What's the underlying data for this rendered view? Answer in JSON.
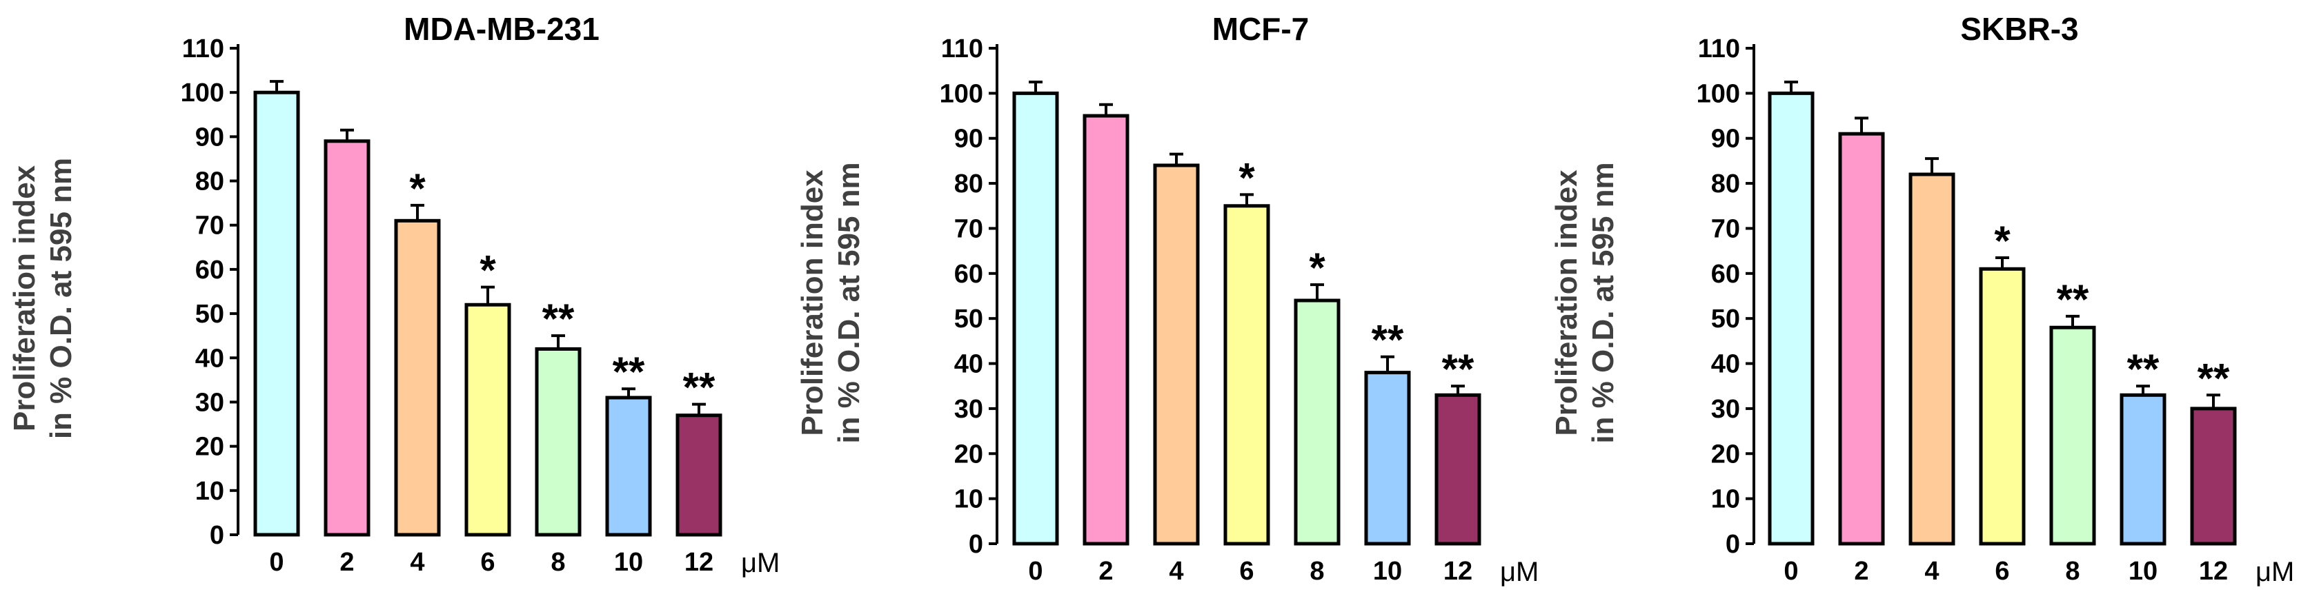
{
  "chart_data": [
    {
      "type": "bar",
      "title": "MDA-MB-231",
      "ylabel_line1": "Proliferation index",
      "ylabel_line2": "in % O.D. at 595 nm",
      "xlabel": "μM",
      "categories": [
        "0",
        "2",
        "4",
        "6",
        "8",
        "10",
        "12"
      ],
      "values": [
        100,
        89,
        71,
        52,
        42,
        31,
        27
      ],
      "errors": [
        2.5,
        2.5,
        3.5,
        4,
        3,
        2,
        2.5
      ],
      "significance": [
        "",
        "",
        "*",
        "*",
        "**",
        "**",
        "**"
      ],
      "colors": [
        "#ccffff",
        "#ff99cc",
        "#ffcc99",
        "#ffff99",
        "#ccffcc",
        "#99ccff",
        "#993366"
      ],
      "ylim": [
        0,
        110
      ],
      "yticks": [
        "0",
        "10",
        "20",
        "30",
        "40",
        "50",
        "60",
        "70",
        "80",
        "90",
        "100",
        "110"
      ],
      "grid": false
    },
    {
      "type": "bar",
      "title": "MCF-7",
      "ylabel_line1": "Proliferation index",
      "ylabel_line2": "in % O.D. at 595 nm",
      "xlabel": "μM",
      "categories": [
        "0",
        "2",
        "4",
        "6",
        "8",
        "10",
        "12"
      ],
      "values": [
        100,
        95,
        84,
        75,
        54,
        38,
        33
      ],
      "errors": [
        2.5,
        2.5,
        2.5,
        2.5,
        3.5,
        3.5,
        2
      ],
      "significance": [
        "",
        "",
        "",
        "*",
        "*",
        "**",
        "**"
      ],
      "colors": [
        "#ccffff",
        "#ff99cc",
        "#ffcc99",
        "#ffff99",
        "#ccffcc",
        "#99ccff",
        "#993366"
      ],
      "ylim": [
        0,
        110
      ],
      "yticks": [
        "0",
        "10",
        "20",
        "30",
        "40",
        "50",
        "60",
        "70",
        "80",
        "90",
        "100",
        "110"
      ],
      "grid": false
    },
    {
      "type": "bar",
      "title": "SKBR-3",
      "ylabel_line1": "Proliferation index",
      "ylabel_line2": "in % O.D. at 595 nm",
      "xlabel": "μM",
      "categories": [
        "0",
        "2",
        "4",
        "6",
        "8",
        "10",
        "12"
      ],
      "values": [
        100,
        91,
        82,
        61,
        48,
        33,
        30
      ],
      "errors": [
        2.5,
        3.5,
        3.5,
        2.5,
        2.5,
        2,
        3
      ],
      "significance": [
        "",
        "",
        "",
        "*",
        "**",
        "**",
        "**"
      ],
      "colors": [
        "#ccffff",
        "#ff99cc",
        "#ffcc99",
        "#ffff99",
        "#ccffcc",
        "#99ccff",
        "#993366"
      ],
      "ylim": [
        0,
        110
      ],
      "yticks": [
        "0",
        "10",
        "20",
        "30",
        "40",
        "50",
        "60",
        "70",
        "80",
        "90",
        "100",
        "110"
      ],
      "grid": false
    }
  ]
}
